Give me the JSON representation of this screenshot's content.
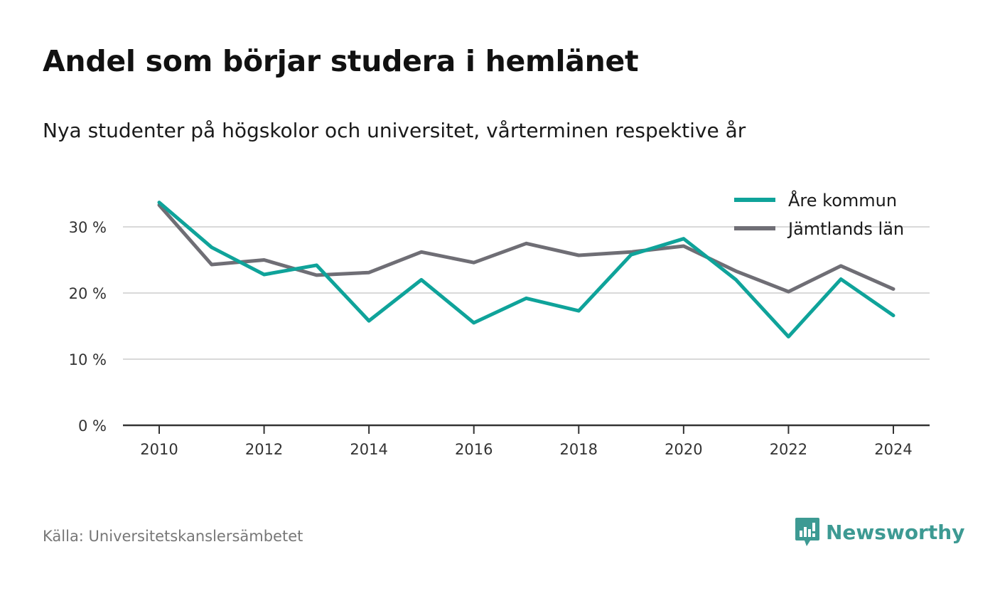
{
  "title": "Andel som börjar studera i hemlänet",
  "subtitle": "Nya studenter på högskolor och universitet, vårterminen respektive år",
  "source": "Källa: Universitetskanslersämbetet",
  "brand": "Newsworthy",
  "colors": {
    "series_1": "#0fa39a",
    "series_2": "#6f6e75",
    "grid": "#d9d9d9",
    "axis": "#333333",
    "brand": "#3d9a93"
  },
  "chart_data": {
    "type": "line",
    "title": "Andel som börjar studera i hemlänet",
    "subtitle": "Nya studenter på högskolor och universitet, vårterminen respektive år",
    "x": [
      2010,
      2011,
      2012,
      2013,
      2014,
      2015,
      2016,
      2017,
      2018,
      2019,
      2020,
      2021,
      2022,
      2023,
      2024
    ],
    "x_ticks": [
      "2010",
      "2012",
      "2014",
      "2016",
      "2018",
      "2020",
      "2022",
      "2024"
    ],
    "y_ticks": [
      "0 %",
      "10 %",
      "20 %",
      "30 %"
    ],
    "ylim": [
      0,
      35
    ],
    "grid": true,
    "legend": "top-right",
    "series": [
      {
        "name": "Åre kommun",
        "values": [
          33.7,
          26.9,
          22.8,
          24.2,
          15.8,
          22.0,
          15.5,
          19.2,
          17.3,
          25.8,
          28.2,
          22.0,
          13.4,
          22.1,
          16.6
        ]
      },
      {
        "name": "Jämtlands län",
        "values": [
          33.3,
          24.3,
          25.0,
          22.7,
          23.1,
          26.2,
          24.6,
          27.5,
          25.7,
          26.2,
          27.1,
          23.3,
          20.2,
          24.1,
          20.6
        ]
      }
    ]
  }
}
